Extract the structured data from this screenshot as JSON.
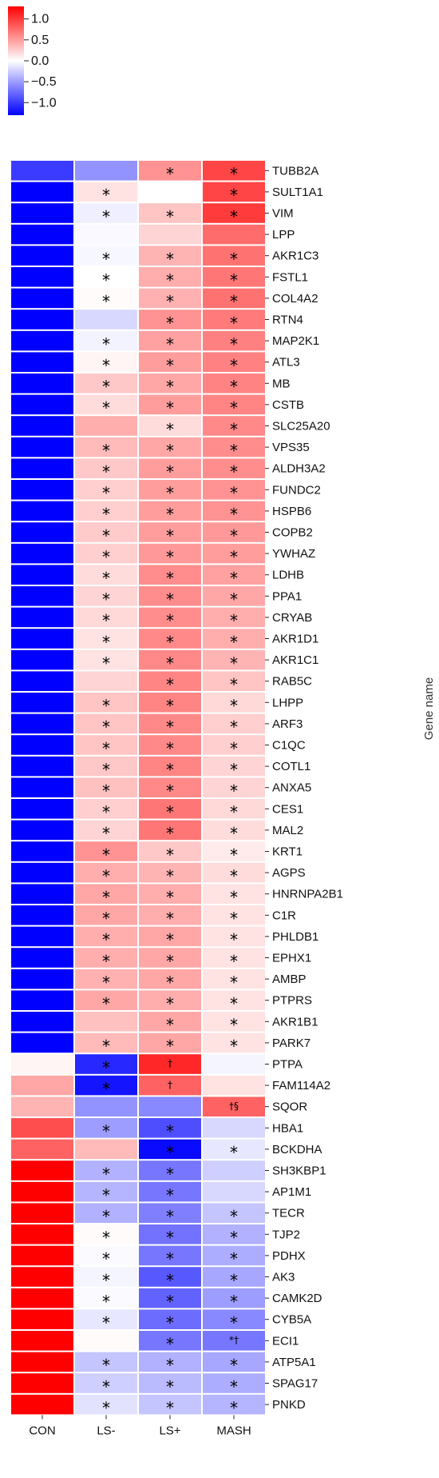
{
  "chart_data": {
    "type": "heatmap",
    "ylabel": "Gene name",
    "columns": [
      "CON",
      "LS-",
      "LS+",
      "MASH"
    ],
    "colorbar": {
      "ticks": [
        "1.0",
        "0.5",
        "0.0",
        "−0.5",
        "−1.0"
      ],
      "range": [
        -1.3,
        1.3
      ],
      "colors": {
        "low": "#0000ff",
        "mid": "#ffffff",
        "high": "#ff0000"
      }
    },
    "rows": [
      {
        "gene": "TUBB2A",
        "values": [
          -1.0,
          -0.55,
          0.55,
          0.95
        ],
        "marks": [
          "",
          "",
          "*",
          "*"
        ]
      },
      {
        "gene": "SULT1A1",
        "values": [
          -1.3,
          0.15,
          0.0,
          0.95
        ],
        "marks": [
          "",
          "*",
          "",
          "*"
        ]
      },
      {
        "gene": "VIM",
        "values": [
          -1.3,
          -0.08,
          0.3,
          1.0
        ],
        "marks": [
          "",
          "*",
          "*",
          "*"
        ]
      },
      {
        "gene": "LPP",
        "values": [
          -1.3,
          -0.03,
          0.22,
          0.75
        ],
        "marks": [
          "",
          "",
          "",
          ""
        ]
      },
      {
        "gene": "AKR1C3",
        "values": [
          -1.3,
          -0.04,
          0.38,
          0.72
        ],
        "marks": [
          "",
          "*",
          "*",
          "*"
        ]
      },
      {
        "gene": "FSTL1",
        "values": [
          -1.3,
          0.0,
          0.42,
          0.7
        ],
        "marks": [
          "",
          "*",
          "*",
          "*"
        ]
      },
      {
        "gene": "COL4A2",
        "values": [
          -1.3,
          0.02,
          0.4,
          0.72
        ],
        "marks": [
          "",
          "*",
          "*",
          "*"
        ]
      },
      {
        "gene": "RTN4",
        "values": [
          -1.3,
          -0.2,
          0.55,
          0.68
        ],
        "marks": [
          "",
          "",
          "*",
          "*"
        ]
      },
      {
        "gene": "MAP2K1",
        "values": [
          -1.3,
          -0.06,
          0.48,
          0.65
        ],
        "marks": [
          "",
          "*",
          "*",
          "*"
        ]
      },
      {
        "gene": "ATL3",
        "values": [
          -1.3,
          0.05,
          0.5,
          0.64
        ],
        "marks": [
          "",
          "*",
          "*",
          "*"
        ]
      },
      {
        "gene": "MB",
        "values": [
          -1.3,
          0.28,
          0.45,
          0.63
        ],
        "marks": [
          "",
          "*",
          "*",
          "*"
        ]
      },
      {
        "gene": "CSTB",
        "values": [
          -1.3,
          0.18,
          0.5,
          0.62
        ],
        "marks": [
          "",
          "*",
          "*",
          "*"
        ]
      },
      {
        "gene": "SLC25A20",
        "values": [
          -1.3,
          0.42,
          0.18,
          0.6
        ],
        "marks": [
          "",
          "",
          "*",
          "*"
        ]
      },
      {
        "gene": "VPS35",
        "values": [
          -1.3,
          0.35,
          0.45,
          0.58
        ],
        "marks": [
          "",
          "*",
          "*",
          "*"
        ]
      },
      {
        "gene": "ALDH3A2",
        "values": [
          -1.3,
          0.28,
          0.5,
          0.58
        ],
        "marks": [
          "",
          "*",
          "*",
          "*"
        ]
      },
      {
        "gene": "FUNDC2",
        "values": [
          -1.3,
          0.25,
          0.5,
          0.55
        ],
        "marks": [
          "",
          "*",
          "*",
          "*"
        ]
      },
      {
        "gene": "HSPB6",
        "values": [
          -1.3,
          0.25,
          0.5,
          0.55
        ],
        "marks": [
          "",
          "*",
          "*",
          "*"
        ]
      },
      {
        "gene": "COPB2",
        "values": [
          -1.3,
          0.27,
          0.5,
          0.52
        ],
        "marks": [
          "",
          "*",
          "*",
          "*"
        ]
      },
      {
        "gene": "YWHAZ",
        "values": [
          -1.3,
          0.25,
          0.52,
          0.5
        ],
        "marks": [
          "",
          "*",
          "*",
          "*"
        ]
      },
      {
        "gene": "LDHB",
        "values": [
          -1.3,
          0.18,
          0.58,
          0.48
        ],
        "marks": [
          "",
          "*",
          "*",
          "*"
        ]
      },
      {
        "gene": "PPA1",
        "values": [
          -1.3,
          0.22,
          0.58,
          0.45
        ],
        "marks": [
          "",
          "*",
          "*",
          "*"
        ]
      },
      {
        "gene": "CRYAB",
        "values": [
          -1.3,
          0.2,
          0.58,
          0.42
        ],
        "marks": [
          "",
          "*",
          "*",
          "*"
        ]
      },
      {
        "gene": "AKR1D1",
        "values": [
          -1.3,
          0.15,
          0.6,
          0.42
        ],
        "marks": [
          "",
          "*",
          "*",
          "*"
        ]
      },
      {
        "gene": "AKR1C1",
        "values": [
          -1.3,
          0.15,
          0.6,
          0.38
        ],
        "marks": [
          "",
          "*",
          "*",
          "*"
        ]
      },
      {
        "gene": "RAB5C",
        "values": [
          -1.3,
          0.22,
          0.62,
          0.3
        ],
        "marks": [
          "",
          "",
          "*",
          "*"
        ]
      },
      {
        "gene": "LHPP",
        "values": [
          -1.3,
          0.3,
          0.62,
          0.2
        ],
        "marks": [
          "",
          "*",
          "*",
          "*"
        ]
      },
      {
        "gene": "ARF3",
        "values": [
          -1.3,
          0.3,
          0.6,
          0.25
        ],
        "marks": [
          "",
          "*",
          "*",
          "*"
        ]
      },
      {
        "gene": "C1QC",
        "values": [
          -1.3,
          0.3,
          0.6,
          0.25
        ],
        "marks": [
          "",
          "*",
          "*",
          "*"
        ]
      },
      {
        "gene": "COTL1",
        "values": [
          -1.3,
          0.28,
          0.62,
          0.22
        ],
        "marks": [
          "",
          "*",
          "*",
          "*"
        ]
      },
      {
        "gene": "ANXA5",
        "values": [
          -1.3,
          0.32,
          0.6,
          0.22
        ],
        "marks": [
          "",
          "*",
          "*",
          "*"
        ]
      },
      {
        "gene": "CES1",
        "values": [
          -1.3,
          0.25,
          0.7,
          0.2
        ],
        "marks": [
          "",
          "*",
          "*",
          "*"
        ]
      },
      {
        "gene": "MAL2",
        "values": [
          -1.3,
          0.22,
          0.7,
          0.18
        ],
        "marks": [
          "",
          "*",
          "*",
          "*"
        ]
      },
      {
        "gene": "KRT1",
        "values": [
          -1.3,
          0.55,
          0.28,
          0.1
        ],
        "marks": [
          "",
          "*",
          "*",
          "*"
        ]
      },
      {
        "gene": "AGPS",
        "values": [
          -1.3,
          0.42,
          0.38,
          0.18
        ],
        "marks": [
          "",
          "*",
          "*",
          "*"
        ]
      },
      {
        "gene": "HNRNPA2B1",
        "values": [
          -1.3,
          0.45,
          0.42,
          0.15
        ],
        "marks": [
          "",
          "*",
          "*",
          "*"
        ]
      },
      {
        "gene": "C1R",
        "values": [
          -1.3,
          0.45,
          0.42,
          0.15
        ],
        "marks": [
          "",
          "*",
          "*",
          "*"
        ]
      },
      {
        "gene": "PHLDB1",
        "values": [
          -1.3,
          0.42,
          0.45,
          0.15
        ],
        "marks": [
          "",
          "*",
          "*",
          "*"
        ]
      },
      {
        "gene": "EPHX1",
        "values": [
          -1.3,
          0.42,
          0.45,
          0.15
        ],
        "marks": [
          "",
          "*",
          "*",
          "*"
        ]
      },
      {
        "gene": "AMBP",
        "values": [
          -1.3,
          0.4,
          0.45,
          0.15
        ],
        "marks": [
          "",
          "*",
          "*",
          "*"
        ]
      },
      {
        "gene": "PTPRS",
        "values": [
          -1.3,
          0.45,
          0.42,
          0.15
        ],
        "marks": [
          "",
          "*",
          "*",
          "*"
        ]
      },
      {
        "gene": "AKR1B1",
        "values": [
          -1.3,
          0.32,
          0.45,
          0.15
        ],
        "marks": [
          "",
          "",
          "*",
          "*"
        ]
      },
      {
        "gene": "PARK7",
        "values": [
          -1.3,
          0.35,
          0.45,
          0.15
        ],
        "marks": [
          "",
          "*",
          "*",
          "*"
        ]
      },
      {
        "gene": "PTPA",
        "values": [
          0.05,
          -1.1,
          1.1,
          -0.05
        ],
        "marks": [
          "",
          "*",
          "†",
          ""
        ]
      },
      {
        "gene": "FAM114A2",
        "values": [
          0.45,
          -1.2,
          0.8,
          0.15
        ],
        "marks": [
          "",
          "*",
          "†",
          ""
        ]
      },
      {
        "gene": "SQOR",
        "values": [
          0.38,
          -0.55,
          -0.6,
          0.8
        ],
        "marks": [
          "",
          "",
          "",
          "†§"
        ]
      },
      {
        "gene": "HBA1",
        "values": [
          0.9,
          -0.5,
          -0.9,
          -0.2
        ],
        "marks": [
          "",
          "*",
          "*",
          ""
        ]
      },
      {
        "gene": "BCKDHA",
        "values": [
          0.8,
          0.35,
          -1.25,
          -0.12
        ],
        "marks": [
          "",
          "",
          "*",
          "*"
        ]
      },
      {
        "gene": "SH3KBP1",
        "values": [
          1.3,
          -0.4,
          -0.7,
          -0.25
        ],
        "marks": [
          "",
          "*",
          "*",
          ""
        ]
      },
      {
        "gene": "AP1M1",
        "values": [
          1.3,
          -0.38,
          -0.7,
          -0.2
        ],
        "marks": [
          "",
          "*",
          "*",
          ""
        ]
      },
      {
        "gene": "TECR",
        "values": [
          1.3,
          -0.4,
          -0.65,
          -0.3
        ],
        "marks": [
          "",
          "*",
          "*",
          "*"
        ]
      },
      {
        "gene": "TJP2",
        "values": [
          1.3,
          0.02,
          -0.72,
          -0.4
        ],
        "marks": [
          "",
          "*",
          "*",
          "*"
        ]
      },
      {
        "gene": "PDHX",
        "values": [
          1.3,
          -0.02,
          -0.7,
          -0.42
        ],
        "marks": [
          "",
          "*",
          "*",
          "*"
        ]
      },
      {
        "gene": "AK3",
        "values": [
          1.3,
          -0.05,
          -0.85,
          -0.45
        ],
        "marks": [
          "",
          "*",
          "*",
          "*"
        ]
      },
      {
        "gene": "CAMK2D",
        "values": [
          1.3,
          -0.02,
          -0.8,
          -0.5
        ],
        "marks": [
          "",
          "*",
          "*",
          "*"
        ]
      },
      {
        "gene": "CYB5A",
        "values": [
          1.3,
          -0.12,
          -0.75,
          -0.6
        ],
        "marks": [
          "",
          "*",
          "*",
          "*"
        ]
      },
      {
        "gene": "ECI1",
        "values": [
          1.3,
          0.02,
          -0.7,
          -0.7
        ],
        "marks": [
          "",
          "",
          "*",
          "*†"
        ]
      },
      {
        "gene": "ATP5A1",
        "values": [
          1.3,
          -0.3,
          -0.4,
          -0.45
        ],
        "marks": [
          "",
          "*",
          "*",
          "*"
        ]
      },
      {
        "gene": "SPAG17",
        "values": [
          1.3,
          -0.25,
          -0.35,
          -0.42
        ],
        "marks": [
          "",
          "*",
          "*",
          "*"
        ]
      },
      {
        "gene": "PNKD",
        "values": [
          1.3,
          -0.15,
          -0.3,
          -0.38
        ],
        "marks": [
          "",
          "*",
          "*",
          "*"
        ]
      }
    ]
  }
}
